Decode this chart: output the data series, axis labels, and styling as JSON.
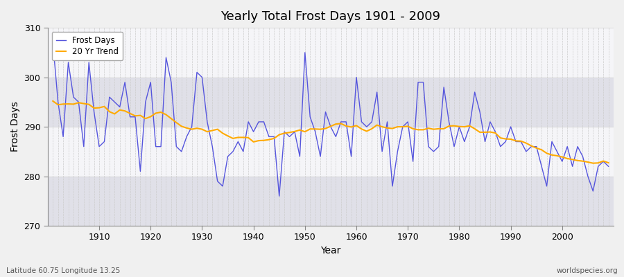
{
  "title": "Yearly Total Frost Days 1901 - 2009",
  "xlabel": "Year",
  "ylabel": "Frost Days",
  "footnote_left": "Latitude 60.75 Longitude 13.25",
  "footnote_right": "worldspecies.org",
  "legend_entries": [
    "Frost Days",
    "20 Yr Trend"
  ],
  "line_color": "#5555dd",
  "trend_color": "#ffaa00",
  "fig_bg_color": "#f0f0f0",
  "plot_bg_color": "#f5f5f8",
  "band_color": "#e0e0e8",
  "ylim": [
    270,
    310
  ],
  "yticks": [
    270,
    280,
    290,
    300,
    310
  ],
  "years": [
    1901,
    1902,
    1903,
    1904,
    1905,
    1906,
    1907,
    1908,
    1909,
    1910,
    1911,
    1912,
    1913,
    1914,
    1915,
    1916,
    1917,
    1918,
    1919,
    1920,
    1921,
    1922,
    1923,
    1924,
    1925,
    1926,
    1927,
    1928,
    1929,
    1930,
    1931,
    1932,
    1933,
    1934,
    1935,
    1936,
    1937,
    1938,
    1939,
    1940,
    1941,
    1942,
    1943,
    1944,
    1945,
    1946,
    1947,
    1948,
    1949,
    1950,
    1951,
    1952,
    1953,
    1954,
    1955,
    1956,
    1957,
    1958,
    1959,
    1960,
    1961,
    1962,
    1963,
    1964,
    1965,
    1966,
    1967,
    1968,
    1969,
    1970,
    1971,
    1972,
    1973,
    1974,
    1975,
    1976,
    1977,
    1978,
    1979,
    1980,
    1981,
    1982,
    1983,
    1984,
    1985,
    1986,
    1987,
    1988,
    1989,
    1990,
    1991,
    1992,
    1993,
    1994,
    1995,
    1996,
    1997,
    1998,
    1999,
    2000,
    2001,
    2002,
    2003,
    2004,
    2005,
    2006,
    2007,
    2008,
    2009
  ],
  "frost_days": [
    307,
    295,
    288,
    303,
    296,
    295,
    286,
    303,
    293,
    286,
    287,
    296,
    295,
    294,
    299,
    292,
    292,
    281,
    295,
    299,
    286,
    286,
    304,
    299,
    286,
    285,
    288,
    290,
    301,
    300,
    291,
    286,
    279,
    278,
    284,
    285,
    287,
    285,
    291,
    289,
    291,
    291,
    288,
    288,
    276,
    289,
    288,
    289,
    284,
    305,
    292,
    289,
    284,
    293,
    290,
    288,
    291,
    291,
    284,
    300,
    291,
    290,
    291,
    297,
    285,
    291,
    278,
    285,
    290,
    291,
    283,
    299,
    299,
    286,
    285,
    286,
    298,
    291,
    286,
    290,
    287,
    290,
    297,
    293,
    287,
    291,
    289,
    286,
    287,
    290,
    287,
    287,
    285,
    286,
    286,
    282,
    278,
    287,
    285,
    283,
    286,
    282,
    286,
    284,
    280,
    277,
    282,
    283,
    282
  ]
}
